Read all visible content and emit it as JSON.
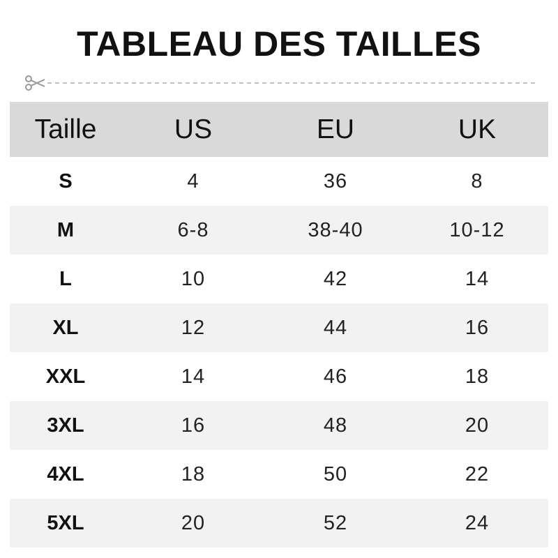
{
  "title": "TABLEAU DES TAILLES",
  "icons": {
    "cut": "scissors-icon"
  },
  "table": {
    "headers": [
      "Taille",
      "US",
      "EU",
      "UK"
    ],
    "rows": [
      [
        "S",
        "4",
        "36",
        "8"
      ],
      [
        "M",
        "6-8",
        "38-40",
        "10-12"
      ],
      [
        "L",
        "10",
        "42",
        "14"
      ],
      [
        "XL",
        "12",
        "44",
        "16"
      ],
      [
        "XXL",
        "14",
        "46",
        "18"
      ],
      [
        "3XL",
        "16",
        "48",
        "20"
      ],
      [
        "4XL",
        "18",
        "50",
        "22"
      ],
      [
        "5XL",
        "20",
        "52",
        "24"
      ]
    ]
  }
}
